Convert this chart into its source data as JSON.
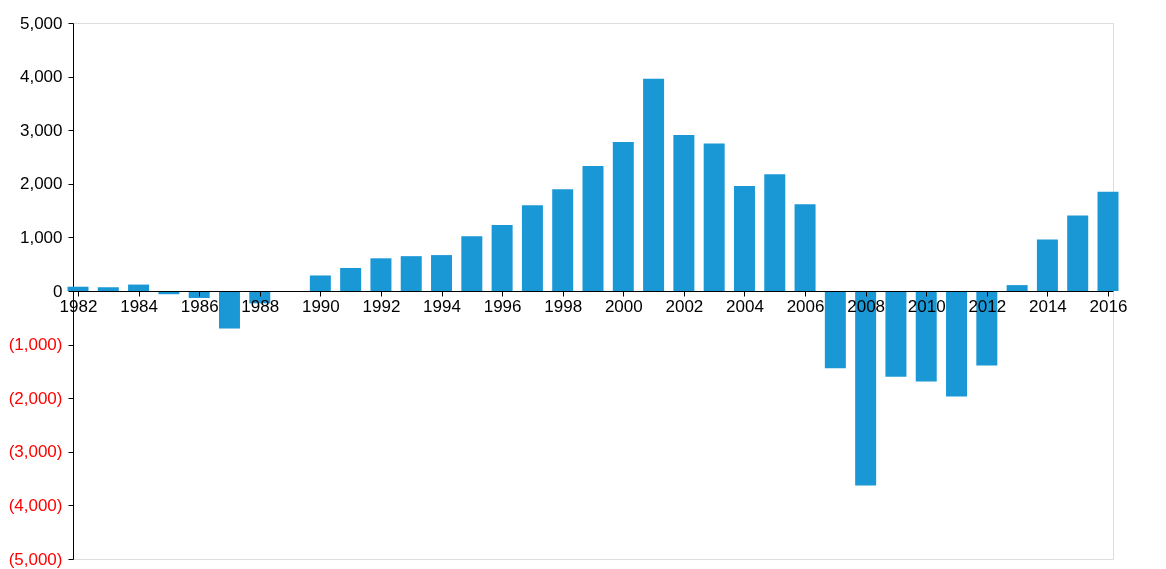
{
  "chart_data": {
    "type": "bar",
    "x": [
      1982,
      1983,
      1984,
      1985,
      1986,
      1987,
      1988,
      1989,
      1990,
      1991,
      1992,
      1993,
      1994,
      1995,
      1996,
      1997,
      1998,
      1999,
      2000,
      2001,
      2002,
      2003,
      2004,
      2005,
      2006,
      2007,
      2008,
      2009,
      2010,
      2011,
      2012,
      2013,
      2014,
      2015,
      2016
    ],
    "values": [
      80,
      70,
      120,
      -60,
      -130,
      -700,
      -230,
      0,
      290,
      430,
      610,
      650,
      670,
      1020,
      1230,
      1600,
      1900,
      2330,
      2780,
      3960,
      2910,
      2750,
      1960,
      2180,
      1620,
      -1440,
      -3630,
      -1600,
      -1690,
      -1970,
      -1390,
      110,
      960,
      1410,
      1850
    ],
    "color": "#1a98d5",
    "xlim": [
      1982,
      2016
    ],
    "xticks": [
      1982,
      1984,
      1986,
      1988,
      1990,
      1992,
      1994,
      1996,
      1998,
      2000,
      2002,
      2004,
      2006,
      2008,
      2010,
      2012,
      2014,
      2016
    ],
    "ylim": [
      -5000,
      5000
    ],
    "yticks": [
      {
        "value": -5000,
        "label": "(5,000)"
      },
      {
        "value": -4000,
        "label": "(4,000)"
      },
      {
        "value": -3000,
        "label": "(3,000)"
      },
      {
        "value": -2000,
        "label": "(2,000)"
      },
      {
        "value": -1000,
        "label": "(1,000)"
      },
      {
        "value": 0,
        "label": "0"
      },
      {
        "value": 1000,
        "label": "1,000"
      },
      {
        "value": 2000,
        "label": "2,000"
      },
      {
        "value": 3000,
        "label": "3,000"
      },
      {
        "value": 4000,
        "label": "4,000"
      },
      {
        "value": 5000,
        "label": "5,000"
      }
    ],
    "grid": false
  }
}
